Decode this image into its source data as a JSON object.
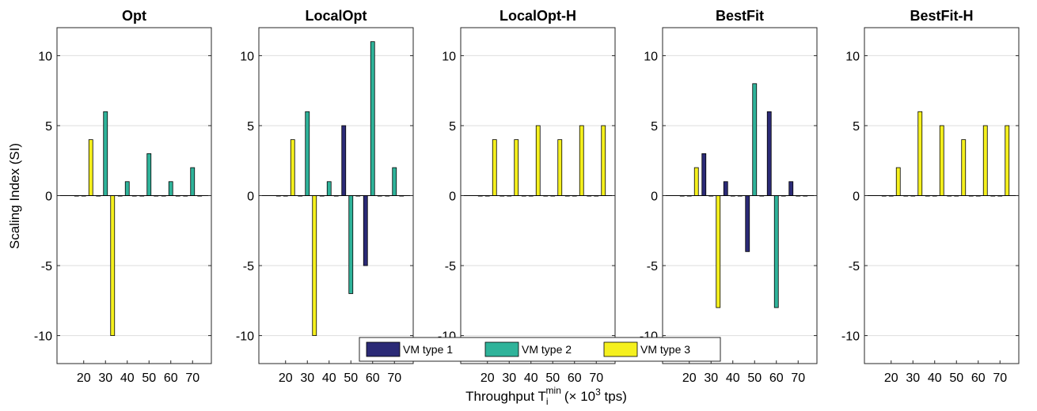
{
  "chart_data": {
    "type": "bar",
    "xlabel": {
      "main": "Throughput T",
      "sub": "i",
      "sup": "min",
      "unit_pre": "(× 10",
      "unit_sup": "3",
      "unit_post": " tps)"
    },
    "ylabel": "Scaling Index (SI)",
    "categories": [
      "20",
      "30",
      "40",
      "50",
      "60",
      "70"
    ],
    "ylim": [
      -12,
      12
    ],
    "yticks": [
      -10,
      -5,
      0,
      5,
      10
    ],
    "grid": "horizontal",
    "legend": {
      "placement": "bottom-center",
      "entries": [
        "VM type 1",
        "VM type 2",
        "VM type 3"
      ]
    },
    "colors": [
      "#2b2a76",
      "#2fb39a",
      "#f5f01e"
    ],
    "panels": [
      {
        "title": "Opt",
        "series": [
          {
            "name": "VM type 1",
            "values": [
              0,
              0,
              0,
              0,
              0,
              0
            ]
          },
          {
            "name": "VM type 2",
            "values": [
              0,
              6,
              1,
              3,
              1,
              2
            ]
          },
          {
            "name": "VM type 3",
            "values": [
              4,
              -10,
              0,
              0,
              0,
              0
            ]
          }
        ]
      },
      {
        "title": "LocalOpt",
        "series": [
          {
            "name": "VM type 1",
            "values": [
              0,
              0,
              0,
              5,
              -5,
              0
            ]
          },
          {
            "name": "VM type 2",
            "values": [
              0,
              6,
              1,
              -7,
              11,
              2
            ]
          },
          {
            "name": "VM type 3",
            "values": [
              4,
              -10,
              0,
              0,
              0,
              0
            ]
          }
        ]
      },
      {
        "title": "LocalOpt-H",
        "series": [
          {
            "name": "VM type 1",
            "values": [
              0,
              0,
              0,
              0,
              0,
              0
            ]
          },
          {
            "name": "VM type 2",
            "values": [
              0,
              0,
              0,
              0,
              0,
              0
            ]
          },
          {
            "name": "VM type 3",
            "values": [
              4,
              4,
              5,
              4,
              5,
              5
            ]
          }
        ]
      },
      {
        "title": "BestFit",
        "series": [
          {
            "name": "VM type 1",
            "values": [
              0,
              3,
              1,
              -4,
              6,
              1
            ]
          },
          {
            "name": "VM type 2",
            "values": [
              0,
              0,
              0,
              8,
              -8,
              0
            ]
          },
          {
            "name": "VM type 3",
            "values": [
              2,
              -8,
              0,
              0,
              0,
              0
            ]
          }
        ]
      },
      {
        "title": "BestFit-H",
        "series": [
          {
            "name": "VM type 1",
            "values": [
              0,
              0,
              0,
              0,
              0,
              0
            ]
          },
          {
            "name": "VM type 2",
            "values": [
              0,
              0,
              0,
              0,
              0,
              0
            ]
          },
          {
            "name": "VM type 3",
            "values": [
              2,
              6,
              5,
              4,
              5,
              5
            ]
          }
        ]
      }
    ]
  }
}
